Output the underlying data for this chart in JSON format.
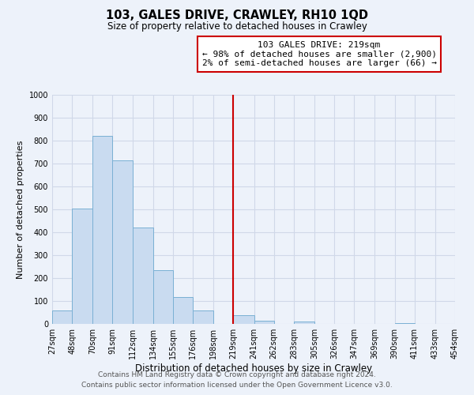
{
  "title": "103, GALES DRIVE, CRAWLEY, RH10 1QD",
  "subtitle": "Size of property relative to detached houses in Crawley",
  "xlabel": "Distribution of detached houses by size in Crawley",
  "ylabel": "Number of detached properties",
  "bin_edges": [
    27,
    48,
    70,
    91,
    112,
    134,
    155,
    176,
    198,
    219,
    241,
    262,
    283,
    305,
    326,
    347,
    369,
    390,
    411,
    433,
    454
  ],
  "bin_counts": [
    57,
    505,
    820,
    713,
    419,
    234,
    118,
    57,
    0,
    37,
    13,
    0,
    10,
    0,
    0,
    0,
    0,
    5,
    0,
    0
  ],
  "vline_x": 219,
  "bar_color": "#c9dbf0",
  "bar_edge_color": "#7ab0d4",
  "vline_color": "#cc0000",
  "annotation_line1": "103 GALES DRIVE: 219sqm",
  "annotation_line2": "← 98% of detached houses are smaller (2,900)",
  "annotation_line3": "2% of semi-detached houses are larger (66) →",
  "annotation_box_color": "#ffffff",
  "annotation_box_edge": "#cc0000",
  "ylim": [
    0,
    1000
  ],
  "yticks": [
    0,
    100,
    200,
    300,
    400,
    500,
    600,
    700,
    800,
    900,
    1000
  ],
  "xtick_labels": [
    "27sqm",
    "48sqm",
    "70sqm",
    "91sqm",
    "112sqm",
    "134sqm",
    "155sqm",
    "176sqm",
    "198sqm",
    "219sqm",
    "241sqm",
    "262sqm",
    "283sqm",
    "305sqm",
    "326sqm",
    "347sqm",
    "369sqm",
    "390sqm",
    "411sqm",
    "433sqm",
    "454sqm"
  ],
  "footer_line1": "Contains HM Land Registry data © Crown copyright and database right 2024.",
  "footer_line2": "Contains public sector information licensed under the Open Government Licence v3.0.",
  "bg_color": "#edf2fa",
  "grid_color": "#d0d8e8",
  "title_fontsize": 10.5,
  "subtitle_fontsize": 8.5,
  "ylabel_fontsize": 8,
  "xlabel_fontsize": 8.5,
  "tick_fontsize": 7,
  "footer_fontsize": 6.5,
  "annot_fontsize": 8
}
